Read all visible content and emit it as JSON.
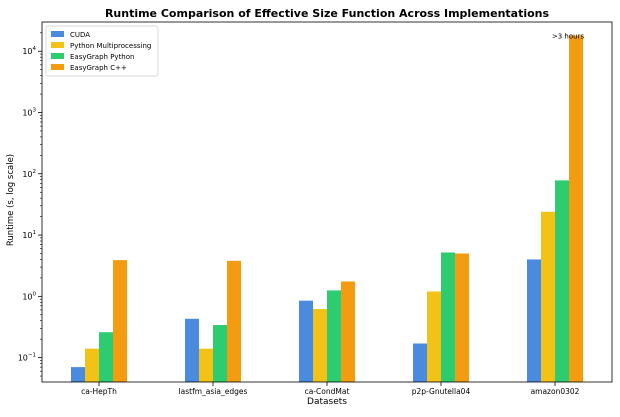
{
  "chart_data": {
    "type": "bar",
    "title": "Runtime Comparison of Effective Size Function Across Implementations",
    "xlabel": "Datasets",
    "ylabel": "Runtime (s, log scale)",
    "yscale": "log",
    "ylim": [
      0.04,
      30000
    ],
    "y_ticks": [
      {
        "value": 0.1,
        "base": "10",
        "exp": "−1"
      },
      {
        "value": 1,
        "base": "10",
        "exp": "0"
      },
      {
        "value": 10,
        "base": "10",
        "exp": "1"
      },
      {
        "value": 100,
        "base": "10",
        "exp": "2"
      },
      {
        "value": 1000,
        "base": "10",
        "exp": "3"
      },
      {
        "value": 10000,
        "base": "10",
        "exp": "4"
      }
    ],
    "grid": false,
    "legend_position": "top-left",
    "categories": [
      "ca-HepTh",
      "lastfm_asia_edges",
      "ca-CondMat",
      "p2p-Gnutella04",
      "amazon0302"
    ],
    "series": [
      {
        "name": "CUDA",
        "color": "#4a8be0",
        "values": [
          0.07,
          0.43,
          0.85,
          0.17,
          4.0
        ]
      },
      {
        "name": "Python Multiprocessing",
        "color": "#f2c216",
        "values": [
          0.14,
          0.14,
          0.62,
          1.2,
          24
        ]
      },
      {
        "name": "EasyGraph Python",
        "color": "#2ecc71",
        "values": [
          0.26,
          0.34,
          1.25,
          5.2,
          78
        ]
      },
      {
        "name": "EasyGraph C++",
        "color": "#f39c12",
        "values": [
          3.9,
          3.8,
          1.75,
          5.0,
          18000
        ]
      }
    ],
    "annotations": [
      {
        "text": ">3 hours",
        "category": "amazon0302",
        "series": "EasyGraph C++"
      }
    ]
  }
}
